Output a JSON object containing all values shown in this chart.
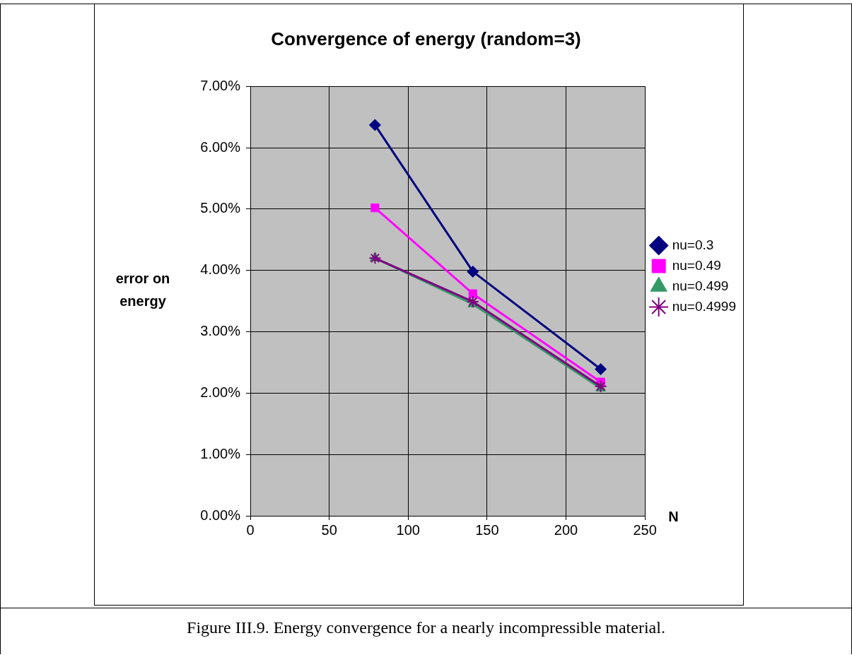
{
  "chart_data": {
    "type": "line",
    "title": "Convergence of energy (random=3)",
    "xlabel": "N",
    "ylabel": "error on energy",
    "annotations": [
      "Figure III.9. Energy convergence for a nearly incompressible material."
    ],
    "x": [
      79,
      141,
      222
    ],
    "series": [
      {
        "name": "nu=0.3",
        "color": "#000080",
        "marker": "diamond",
        "values": [
          6.37,
          3.98,
          2.39
        ]
      },
      {
        "name": "nu=0.49",
        "color": "#ff00ff",
        "marker": "square",
        "values": [
          5.02,
          3.62,
          2.18
        ]
      },
      {
        "name": "nu=0.499",
        "color": "#339966",
        "marker": "triangle",
        "values": [
          4.2,
          3.45,
          2.08
        ]
      },
      {
        "name": "nu=0.4999",
        "color": "#800080",
        "marker": "cross",
        "values": [
          4.2,
          3.49,
          2.11
        ]
      }
    ],
    "xlim": [
      0,
      250
    ],
    "xticks": [
      0,
      50,
      100,
      150,
      200,
      250
    ],
    "ylim": [
      0,
      7
    ],
    "yticks": [
      {
        "value": 0,
        "label": "0.00%"
      },
      {
        "value": 1,
        "label": "1.00%"
      },
      {
        "value": 2,
        "label": "2.00%"
      },
      {
        "value": 3,
        "label": "3.00%"
      },
      {
        "value": 4,
        "label": "4.00%"
      },
      {
        "value": 5,
        "label": "5.00%"
      },
      {
        "value": 6,
        "label": "6.00%"
      },
      {
        "value": 7,
        "label": "7.00%"
      }
    ],
    "grid": true,
    "legend": "right"
  }
}
